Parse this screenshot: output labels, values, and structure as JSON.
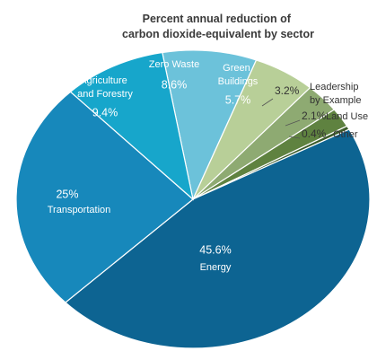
{
  "chart_data": {
    "type": "pie",
    "title": "Percent annual reduction of carbon dioxide-equivalent by sector",
    "categories": [
      "Zero Waste",
      "Green Buildings",
      "Leadership by Example",
      "Land Use",
      "Other",
      "Energy",
      "Transportation",
      "Agriculture and Forestry"
    ],
    "values": [
      8.6,
      5.7,
      3.2,
      2.1,
      0.4,
      45.6,
      25,
      9.4
    ],
    "value_labels": [
      "8.6%",
      "5.7%",
      "3.2%",
      "2.1%",
      "0.4%",
      "45.6%",
      "25%",
      "9.4%"
    ],
    "colors": [
      "#6cc2da",
      "#b8cf98",
      "#8eaa72",
      "#5f8240",
      "#3c5c2a",
      "#0d6492",
      "#1788bb",
      "#17a6cb"
    ]
  }
}
